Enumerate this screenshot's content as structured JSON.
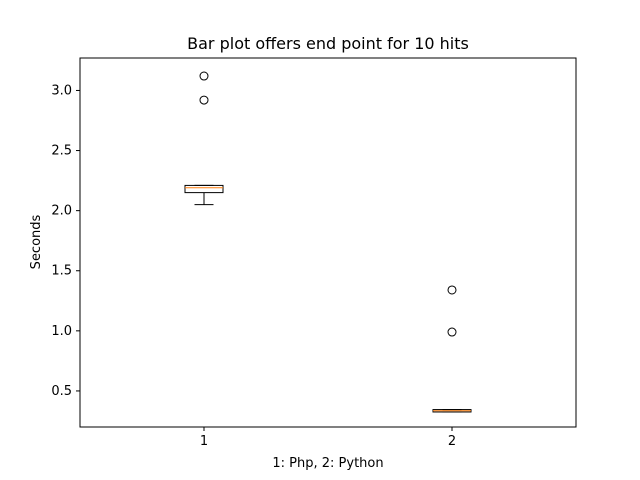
{
  "chart_data": {
    "type": "box",
    "title": "Bar plot offers end point for 10 hits",
    "xlabel": "1: Php, 2: Python",
    "ylabel": "Seconds",
    "ylim": [
      0.2,
      3.27
    ],
    "xlim": [
      0.5,
      2.5
    ],
    "x_ticks": [
      "1",
      "2"
    ],
    "y_ticks": [
      "0.5",
      "1.0",
      "1.5",
      "2.0",
      "2.5",
      "3.0"
    ],
    "boxes": [
      {
        "x": 1,
        "label": "1",
        "whisker_low": 2.05,
        "q1": 2.15,
        "median": 2.19,
        "q3": 2.21,
        "whisker_high": 2.21,
        "outliers": [
          2.92,
          3.12
        ]
      },
      {
        "x": 2,
        "label": "2",
        "whisker_low": 0.325,
        "q1": 0.325,
        "median": 0.335,
        "q3": 0.345,
        "whisker_high": 0.345,
        "outliers": [
          0.99,
          1.34
        ]
      }
    ],
    "colors": {
      "box": "#000000",
      "median": "#ff7f0e",
      "outlier": "#000000"
    }
  }
}
